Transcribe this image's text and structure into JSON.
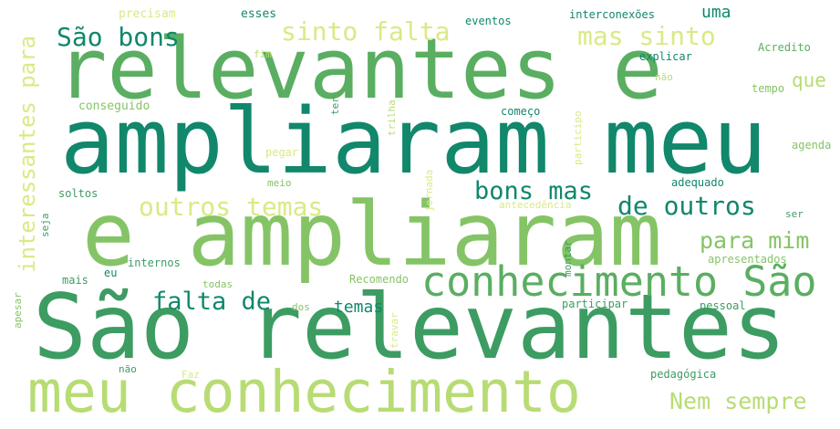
{
  "colors": {
    "dark_green": "#11876b",
    "teal_green": "#27946a",
    "green": "#3c9c62",
    "mid_green": "#5aae61",
    "light_green": "#85c466",
    "yellow_green": "#b7dc73",
    "pale_yellow": "#d9ea84"
  },
  "words": [
    {
      "text": "relevantes e",
      "color": "mid_green"
    },
    {
      "text": "ampliaram meu",
      "color": "dark_green"
    },
    {
      "text": "e ampliaram",
      "color": "light_green"
    },
    {
      "text": "São relevantes",
      "color": "green"
    },
    {
      "text": "meu conhecimento",
      "color": "yellow_green"
    },
    {
      "text": "conhecimento São",
      "color": "mid_green"
    },
    {
      "text": "interessantes para",
      "color": "pale_yellow"
    },
    {
      "text": "São bons",
      "color": "dark_green"
    },
    {
      "text": "sinto falta",
      "color": "pale_yellow"
    },
    {
      "text": "mas sinto",
      "color": "pale_yellow"
    },
    {
      "text": "uma",
      "color": "dark_green"
    },
    {
      "text": "que",
      "color": "yellow_green"
    },
    {
      "text": "outros temas",
      "color": "pale_yellow"
    },
    {
      "text": "bons mas",
      "color": "dark_green"
    },
    {
      "text": "de outros",
      "color": "dark_green"
    },
    {
      "text": "para mim",
      "color": "light_green"
    },
    {
      "text": "falta de",
      "color": "dark_green"
    },
    {
      "text": "temas",
      "color": "dark_green"
    },
    {
      "text": "Nem sempre",
      "color": "yellow_green"
    },
    {
      "text": "precisam",
      "color": "pale_yellow"
    },
    {
      "text": "esses",
      "color": "dark_green"
    },
    {
      "text": "eventos",
      "color": "dark_green"
    },
    {
      "text": "interconexões",
      "color": "dark_green"
    },
    {
      "text": "fim",
      "color": "yellow_green"
    },
    {
      "text": "explicar",
      "color": "dark_green"
    },
    {
      "text": "Acredito",
      "color": "mid_green"
    },
    {
      "text": "não",
      "color": "yellow_green"
    },
    {
      "text": "tempo",
      "color": "light_green"
    },
    {
      "text": "conseguido",
      "color": "light_green"
    },
    {
      "text": "ter",
      "color": "green"
    },
    {
      "text": "começo",
      "color": "dark_green"
    },
    {
      "text": "trilha",
      "color": "yellow_green"
    },
    {
      "text": "participo",
      "color": "pale_yellow"
    },
    {
      "text": "agenda",
      "color": "light_green"
    },
    {
      "text": "pegar",
      "color": "pale_yellow"
    },
    {
      "text": "adequado",
      "color": "dark_green"
    },
    {
      "text": "meio",
      "color": "light_green"
    },
    {
      "text": "jornada",
      "color": "pale_yellow"
    },
    {
      "text": "soltos",
      "color": "green"
    },
    {
      "text": "antecedência",
      "color": "pale_yellow"
    },
    {
      "text": "seja",
      "color": "green"
    },
    {
      "text": "ser",
      "color": "green"
    },
    {
      "text": "internos",
      "color": "green"
    },
    {
      "text": "montar",
      "color": "green"
    },
    {
      "text": "apresentados",
      "color": "light_green"
    },
    {
      "text": "eu",
      "color": "dark_green"
    },
    {
      "text": "mais",
      "color": "green"
    },
    {
      "text": "todas",
      "color": "light_green"
    },
    {
      "text": "Recomendo",
      "color": "light_green"
    },
    {
      "text": "apesar",
      "color": "light_green"
    },
    {
      "text": "dos",
      "color": "light_green"
    },
    {
      "text": "participar",
      "color": "green"
    },
    {
      "text": "pessoal",
      "color": "green"
    },
    {
      "text": "travar",
      "color": "pale_yellow"
    },
    {
      "text": "não",
      "color": "green"
    },
    {
      "text": "Faz",
      "color": "pale_yellow"
    },
    {
      "text": "pedagógica",
      "color": "green"
    }
  ]
}
